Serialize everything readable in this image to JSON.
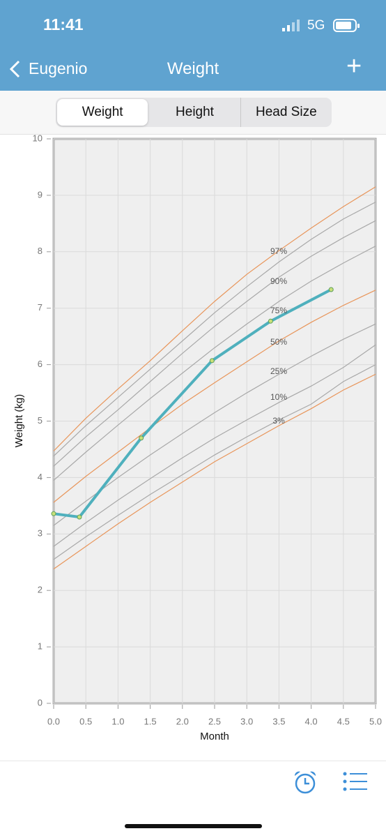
{
  "status": {
    "time": "11:41",
    "network": "5G"
  },
  "nav": {
    "back": "Eugenio",
    "title": "Weight",
    "add": "+"
  },
  "tabs": {
    "items": [
      "Weight",
      "Height",
      "Head Size"
    ],
    "selected": 0
  },
  "chart_data": {
    "type": "line",
    "x_label": "Month",
    "y_label": "Weight (kg)",
    "xlim": [
      0,
      5
    ],
    "ylim": [
      0,
      10
    ],
    "xticks": [
      {
        "value": 0,
        "label": "0.0"
      },
      0.5,
      {
        "value": 1,
        "label": "1.0"
      },
      1.5,
      {
        "value": 2,
        "label": "2.0"
      },
      2.5,
      {
        "value": 3,
        "label": "3.0"
      },
      3.5,
      {
        "value": 4,
        "label": "4.0"
      },
      4.5,
      {
        "value": 5,
        "label": "5.0"
      }
    ],
    "yticks": [
      0,
      1,
      2,
      3,
      4,
      5,
      6,
      7,
      8,
      9,
      10
    ],
    "grid": true,
    "curve_labels": [
      "97%",
      "90%",
      "75%",
      "50%",
      "25%",
      "10%",
      "3%"
    ],
    "series": [
      {
        "color": "#e8955a",
        "x": [
          0,
          0.5,
          1,
          1.5,
          2,
          2.5,
          3,
          3.5,
          4,
          4.5,
          5
        ],
        "values": [
          4.47,
          5.05,
          5.57,
          6.07,
          6.6,
          7.12,
          7.6,
          8.02,
          8.42,
          8.8,
          9.15
        ]
      },
      {
        "color": "#a8a8a8",
        "x": [
          0,
          0.5,
          1,
          1.5,
          2,
          2.5,
          3,
          3.5,
          4,
          4.5,
          5
        ],
        "values": [
          4.38,
          4.92,
          5.42,
          5.92,
          6.42,
          6.92,
          7.38,
          7.82,
          8.22,
          8.58,
          8.88
        ]
      },
      {
        "color": "#a8a8a8",
        "x": [
          0,
          0.5,
          1,
          1.5,
          2,
          2.5,
          3,
          3.5,
          4,
          4.5,
          5
        ],
        "values": [
          4.2,
          4.72,
          5.2,
          5.7,
          6.2,
          6.68,
          7.12,
          7.55,
          7.92,
          8.25,
          8.55
        ]
      },
      {
        "color": "#a8a8a8",
        "x": [
          0,
          0.5,
          1,
          1.5,
          2,
          2.5,
          3,
          3.5,
          4,
          4.5,
          5
        ],
        "values": [
          3.95,
          4.45,
          4.93,
          5.4,
          5.85,
          6.3,
          6.72,
          7.12,
          7.48,
          7.8,
          8.1
        ]
      },
      {
        "color": "#e8955a",
        "x": [
          0,
          0.5,
          1,
          1.5,
          2,
          2.5,
          3,
          3.5,
          4,
          4.5,
          5
        ],
        "values": [
          3.56,
          4.02,
          4.45,
          4.88,
          5.3,
          5.68,
          6.05,
          6.42,
          6.75,
          7.05,
          7.32
        ]
      },
      {
        "color": "#a8a8a8",
        "x": [
          0,
          0.5,
          1,
          1.5,
          2,
          2.5,
          3,
          3.5,
          4,
          4.5,
          5
        ],
        "values": [
          3.15,
          3.58,
          4.0,
          4.4,
          4.78,
          5.15,
          5.5,
          5.83,
          6.15,
          6.45,
          6.72
        ]
      },
      {
        "color": "#a8a8a8",
        "x": [
          0,
          0.5,
          1,
          1.5,
          2,
          2.5,
          3,
          3.5,
          4,
          4.5,
          5
        ],
        "values": [
          2.78,
          3.2,
          3.6,
          3.98,
          4.35,
          4.7,
          5.02,
          5.33,
          5.62,
          5.95,
          6.35
        ]
      },
      {
        "color": "#a8a8a8",
        "x": [
          0,
          0.5,
          1,
          1.5,
          2,
          2.5,
          3,
          3.5,
          4,
          4.5,
          5
        ],
        "values": [
          2.55,
          2.95,
          3.33,
          3.7,
          4.05,
          4.4,
          4.72,
          5.02,
          5.3,
          5.7,
          6.0
        ]
      },
      {
        "color": "#e8955a",
        "x": [
          0,
          0.5,
          1,
          1.5,
          2,
          2.5,
          3,
          3.5,
          4,
          4.5,
          5
        ],
        "values": [
          2.38,
          2.78,
          3.18,
          3.56,
          3.92,
          4.28,
          4.6,
          4.92,
          5.22,
          5.55,
          5.83
        ]
      },
      {
        "color": "#4fb0bd",
        "x": [
          0,
          0.4,
          1.36,
          2.46,
          3.37,
          4.31
        ],
        "values": [
          3.36,
          3.3,
          4.7,
          6.07,
          6.77,
          7.33
        ],
        "markers": true
      }
    ]
  }
}
